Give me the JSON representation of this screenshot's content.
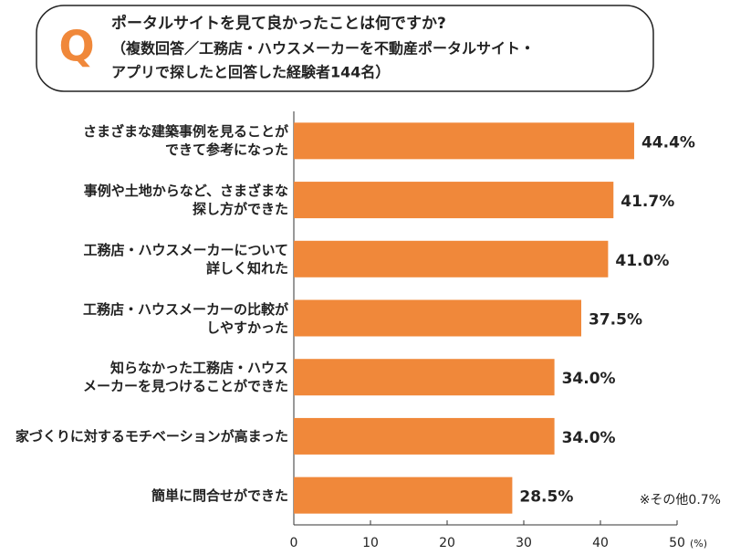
{
  "chart_data": {
    "type": "bar",
    "orientation": "horizontal",
    "title": "ポータルサイトを見て良かったことは何ですか?",
    "subtitle": [
      "（複数回答／工務店・ハウスメーカーを不動産ポータルサイト・",
      "アプリで探したと回答した経験者144名）"
    ],
    "badge": "Q",
    "categories": [
      "さまざまな建築事例を見ることが\nできて参考になった",
      "事例や土地からなど、さまざまな\n探し方ができた",
      "工務店・ハウスメーカーについて\n詳しく知れた",
      "工務店・ハウスメーカーの比較が\nしやすかった",
      "知らなかった工務店・ハウス\nメーカーを見つけることができた",
      "家づくりに対するモチベーションが高まった",
      "簡単に問合せができた"
    ],
    "values": [
      44.4,
      41.7,
      41.0,
      37.5,
      34.0,
      34.0,
      28.5
    ],
    "value_labels": [
      "44.4%",
      "41.7%",
      "41.0%",
      "37.5%",
      "34.0%",
      "34.0%",
      "28.5%"
    ],
    "color": "#f0883a",
    "xlim": [
      0,
      50
    ],
    "xticks": [
      0,
      10,
      20,
      30,
      40,
      50
    ],
    "x_unit": "(%)",
    "note": "※その他0.7%"
  }
}
